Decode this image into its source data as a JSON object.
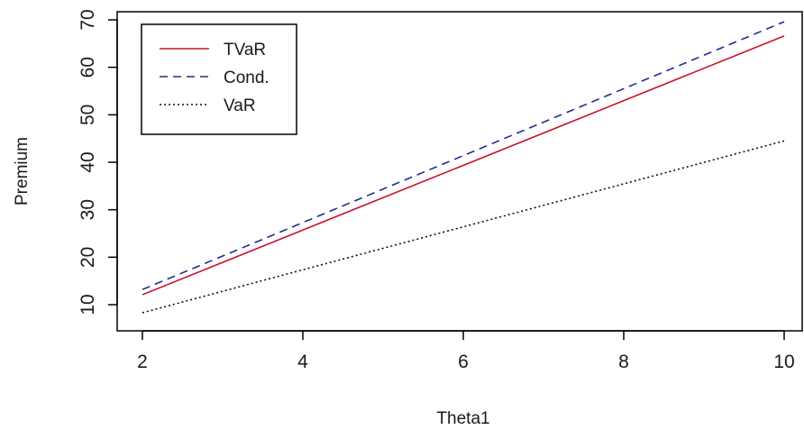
{
  "chart_data": {
    "type": "line",
    "title": "",
    "xlabel": "Theta1",
    "ylabel": "Premium",
    "xlim": [
      2,
      10
    ],
    "ylim": [
      10,
      70
    ],
    "xticks": [
      2,
      4,
      6,
      8,
      10
    ],
    "yticks": [
      10,
      20,
      30,
      40,
      50,
      60,
      70
    ],
    "grid": false,
    "legend_position": "top-left",
    "series": [
      {
        "name": "TVaR",
        "color": "#c8102e",
        "dash": "solid",
        "x": [
          2,
          10
        ],
        "y": [
          12.1,
          66.6
        ]
      },
      {
        "name": "Cond.",
        "color": "#1f2d8f",
        "dash": "dashed",
        "x": [
          2,
          10
        ],
        "y": [
          13.2,
          69.6
        ]
      },
      {
        "name": "VaR",
        "color": "#111111",
        "dash": "dotted",
        "x": [
          2,
          10
        ],
        "y": [
          8.3,
          44.5
        ]
      }
    ]
  }
}
